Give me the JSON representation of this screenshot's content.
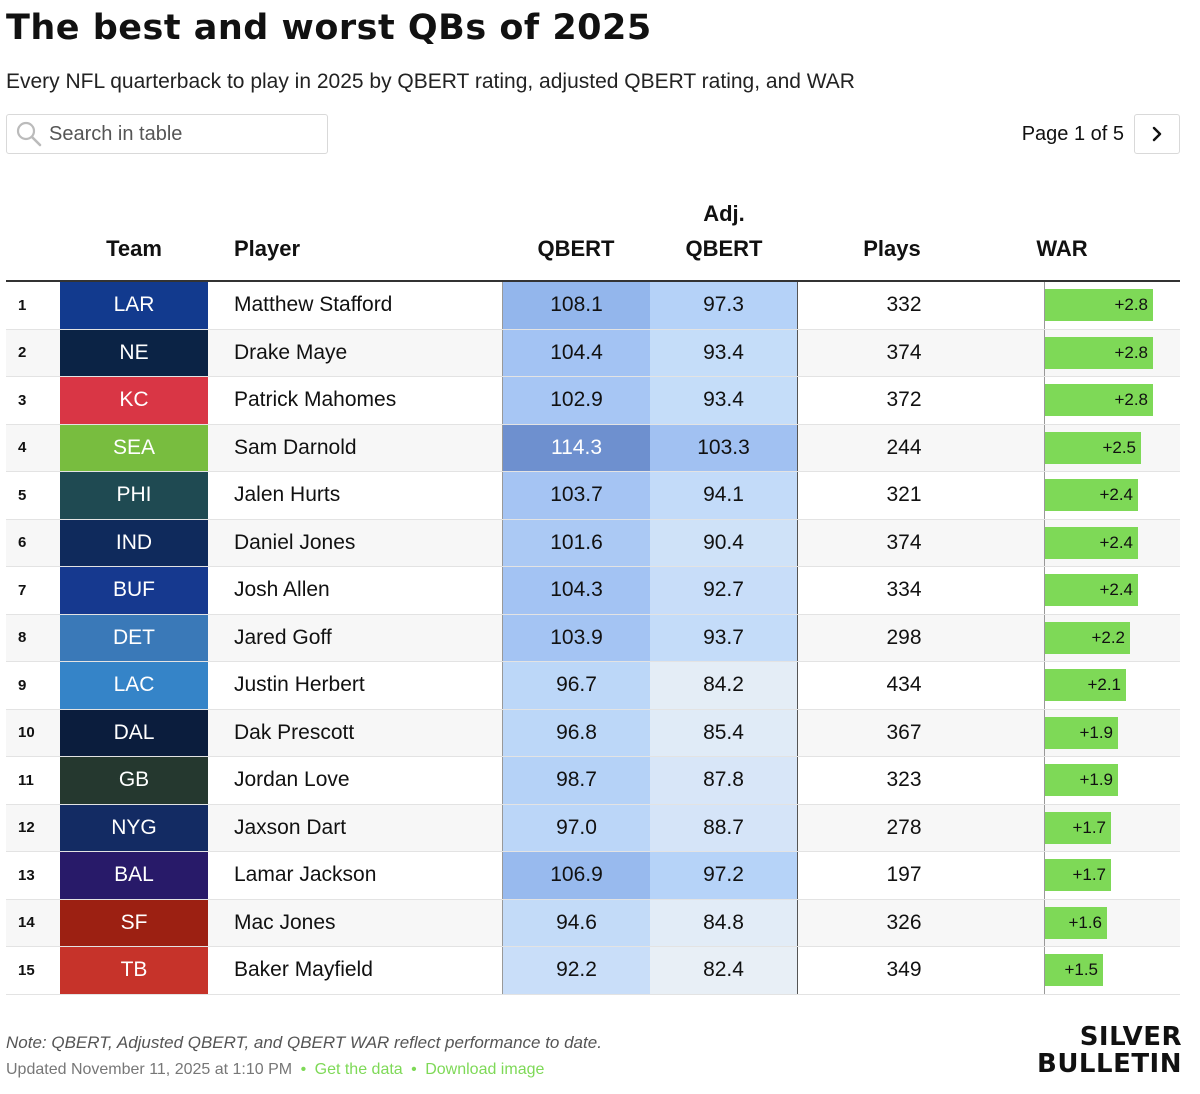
{
  "header": {
    "title": "The best and worst QBs of 2025",
    "subtitle": "Every NFL quarterback to play in 2025 by QBERT rating, adjusted QBERT rating, and WAR"
  },
  "search": {
    "placeholder": "Search in table",
    "icon": "search-icon"
  },
  "pager": {
    "label": "Page 1 of 5",
    "next_icon": "chevron-right-icon"
  },
  "columns": {
    "team": "Team",
    "player": "Player",
    "qbert": "QBERT",
    "adj_line1": "Adj.",
    "adj_line2": "QBERT",
    "plays": "Plays",
    "war": "WAR"
  },
  "rows": [
    {
      "rank": "1",
      "team": "LAR",
      "team_color": "#123a8e",
      "player": "Matthew Stafford",
      "qbert": "108.1",
      "qbert_color": "#93b6ec",
      "adj": "97.3",
      "adj_color": "#b5d2f8",
      "plays": "332",
      "war": "+2.8",
      "war_value": 2.8
    },
    {
      "rank": "2",
      "team": "NE",
      "team_color": "#0b2345",
      "player": "Drake Maye",
      "qbert": "104.4",
      "qbert_color": "#a3c3f3",
      "adj": "93.4",
      "adj_color": "#c5ddf9",
      "plays": "374",
      "war": "+2.8",
      "war_value": 2.8
    },
    {
      "rank": "3",
      "team": "KC",
      "team_color": "#d93645",
      "player": "Patrick Mahomes",
      "qbert": "102.9",
      "qbert_color": "#a7c6f4",
      "adj": "93.4",
      "adj_color": "#c5ddf9",
      "plays": "372",
      "war": "+2.8",
      "war_value": 2.8
    },
    {
      "rank": "4",
      "team": "SEA",
      "team_color": "#78bd3f",
      "player": "Sam Darnold",
      "qbert": "114.3",
      "qbert_color": "#6e90cf",
      "adj": "103.3",
      "adj_color": "#a1c1f2",
      "plays": "244",
      "war": "+2.5",
      "war_value": 2.5
    },
    {
      "rank": "5",
      "team": "PHI",
      "team_color": "#1f4a52",
      "player": "Jalen Hurts",
      "qbert": "103.7",
      "qbert_color": "#a5c4f3",
      "adj": "94.1",
      "adj_color": "#c3dbf9",
      "plays": "321",
      "war": "+2.4",
      "war_value": 2.4
    },
    {
      "rank": "6",
      "team": "IND",
      "team_color": "#0f2a5c",
      "player": "Daniel Jones",
      "qbert": "101.6",
      "qbert_color": "#abc9f4",
      "adj": "90.4",
      "adj_color": "#cfe2f8",
      "plays": "374",
      "war": "+2.4",
      "war_value": 2.4
    },
    {
      "rank": "7",
      "team": "BUF",
      "team_color": "#16398f",
      "player": "Josh Allen",
      "qbert": "104.3",
      "qbert_color": "#a3c3f3",
      "adj": "92.7",
      "adj_color": "#c8ddf9",
      "plays": "334",
      "war": "+2.4",
      "war_value": 2.4
    },
    {
      "rank": "8",
      "team": "DET",
      "team_color": "#3a79b8",
      "player": "Jared Goff",
      "qbert": "103.9",
      "qbert_color": "#a4c4f3",
      "adj": "93.7",
      "adj_color": "#c4dcf9",
      "plays": "298",
      "war": "+2.2",
      "war_value": 2.2
    },
    {
      "rank": "9",
      "team": "LAC",
      "team_color": "#3584c8",
      "player": "Justin Herbert",
      "qbert": "96.7",
      "qbert_color": "#bcd7f8",
      "adj": "84.2",
      "adj_color": "#e4edf6",
      "plays": "434",
      "war": "+2.1",
      "war_value": 2.1
    },
    {
      "rank": "10",
      "team": "DAL",
      "team_color": "#0b1d3d",
      "player": "Dak Prescott",
      "qbert": "96.8",
      "qbert_color": "#bcd7f8",
      "adj": "85.4",
      "adj_color": "#e0ebf7",
      "plays": "367",
      "war": "+1.9",
      "war_value": 1.9
    },
    {
      "rank": "11",
      "team": "GB",
      "team_color": "#25382f",
      "player": "Jordan Love",
      "qbert": "98.7",
      "qbert_color": "#b5d2f7",
      "adj": "87.8",
      "adj_color": "#d8e6f8",
      "plays": "323",
      "war": "+1.9",
      "war_value": 1.9
    },
    {
      "rank": "12",
      "team": "NYG",
      "team_color": "#132b63",
      "player": "Jaxson Dart",
      "qbert": "97.0",
      "qbert_color": "#bbd6f8",
      "adj": "88.7",
      "adj_color": "#d5e4f8",
      "plays": "278",
      "war": "+1.7",
      "war_value": 1.7
    },
    {
      "rank": "13",
      "team": "BAL",
      "team_color": "#281a69",
      "player": "Lamar Jackson",
      "qbert": "106.9",
      "qbert_color": "#98baee",
      "adj": "97.2",
      "adj_color": "#b6d3f8",
      "plays": "197",
      "war": "+1.7",
      "war_value": 1.7
    },
    {
      "rank": "14",
      "team": "SF",
      "team_color": "#9c2012",
      "player": "Mac Jones",
      "qbert": "94.6",
      "qbert_color": "#c3dbf8",
      "adj": "84.8",
      "adj_color": "#e2ecf7",
      "plays": "326",
      "war": "+1.6",
      "war_value": 1.6
    },
    {
      "rank": "15",
      "team": "TB",
      "team_color": "#c6332a",
      "player": "Baker Mayfield",
      "qbert": "92.2",
      "qbert_color": "#c9def9",
      "adj": "82.4",
      "adj_color": "#e8eff6",
      "plays": "349",
      "war": "+1.5",
      "war_value": 1.5
    }
  ],
  "war_max": 2.8,
  "footer": {
    "note": "Note: QBERT, Adjusted QBERT, and QBERT WAR reflect performance to date.",
    "updated": "Updated November 11, 2025 at 1:10 PM",
    "get_data": "Get the data",
    "download": "Download image",
    "sep": "•"
  },
  "logo": {
    "line1": "SILVER",
    "line2": "BULLETIN"
  }
}
